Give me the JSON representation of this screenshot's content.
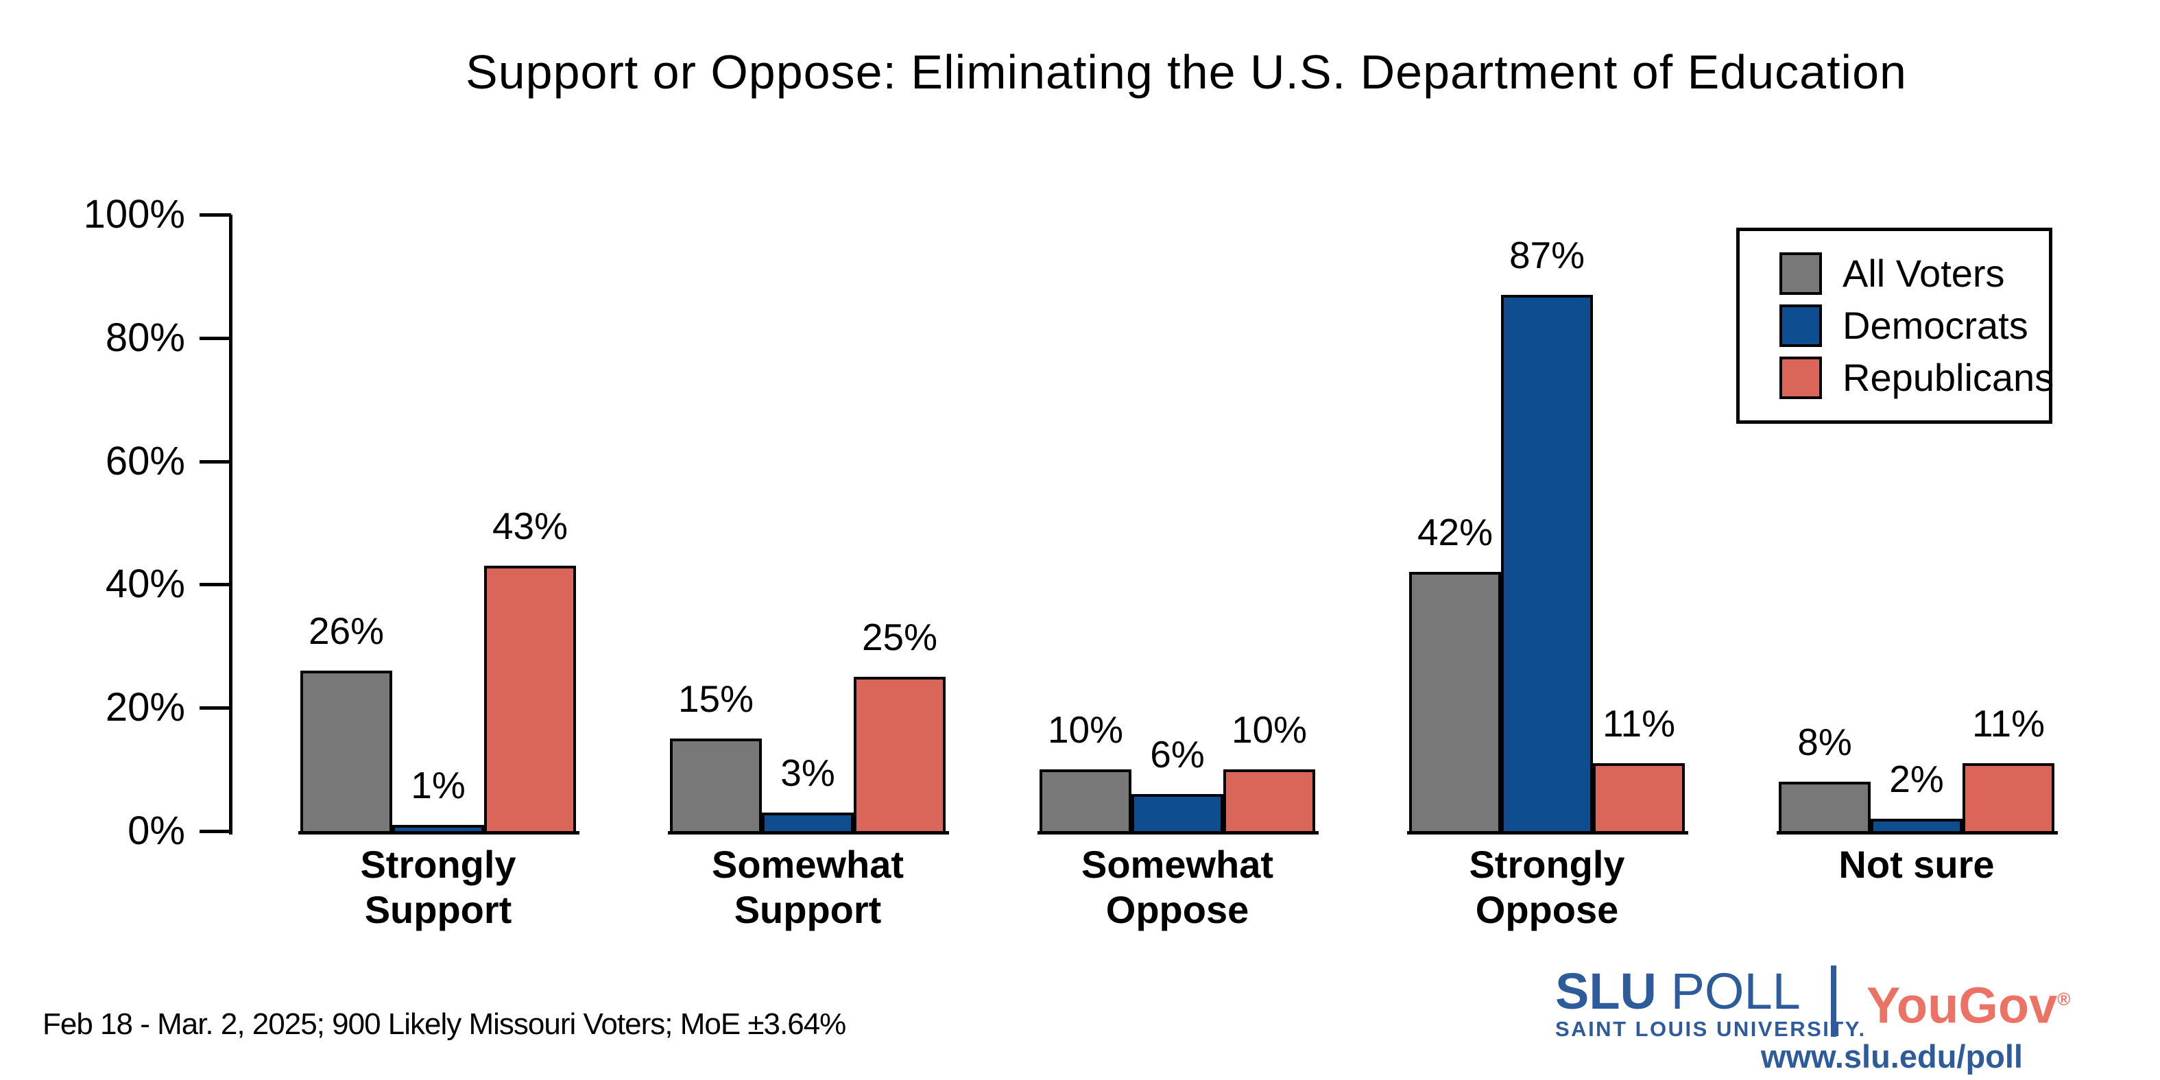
{
  "title": "Support or Oppose: Eliminating the U.S. Department of Education",
  "footnote": "Feb 18 - Mar. 2, 2025; 900 Likely Missouri Voters; MoE ±3.64%",
  "branding": {
    "slu": "SLU",
    "poll": "POLL",
    "slu_sub": "SAINT LOUIS UNIVERSITY.",
    "yougov": "YouGov",
    "yougov_reg": "®",
    "url": "www.slu.edu/poll",
    "slu_blue": "#2e5b9b",
    "yougov_red": "#eb7264"
  },
  "chart_data": {
    "type": "bar",
    "title": "Support or Oppose: Eliminating the U.S. Department of Education",
    "categories": [
      "Strongly Support",
      "Somewhat Support",
      "Somewhat Oppose",
      "Strongly Oppose",
      "Not sure"
    ],
    "category_label_lines": [
      [
        "Strongly",
        "Support"
      ],
      [
        "Somewhat",
        "Support"
      ],
      [
        "Somewhat",
        "Oppose"
      ],
      [
        "Strongly",
        "Oppose"
      ],
      [
        "Not sure"
      ]
    ],
    "series": [
      {
        "name": "All Voters",
        "color": "#787878",
        "values": [
          26,
          15,
          10,
          42,
          8
        ]
      },
      {
        "name": "Democrats",
        "color": "#0e4d90",
        "values": [
          1,
          3,
          6,
          87,
          2
        ]
      },
      {
        "name": "Republicans",
        "color": "#d96659",
        "values": [
          43,
          25,
          10,
          11,
          11
        ]
      }
    ],
    "value_label_format": "{v}%",
    "xlabel": "",
    "ylabel": "",
    "ylim": [
      0,
      100
    ],
    "yticks": [
      0,
      20,
      40,
      60,
      80,
      100
    ],
    "ytick_suffix": "%",
    "grid": false,
    "bar_outline_color": "#000000",
    "legend_position": "upper right"
  }
}
